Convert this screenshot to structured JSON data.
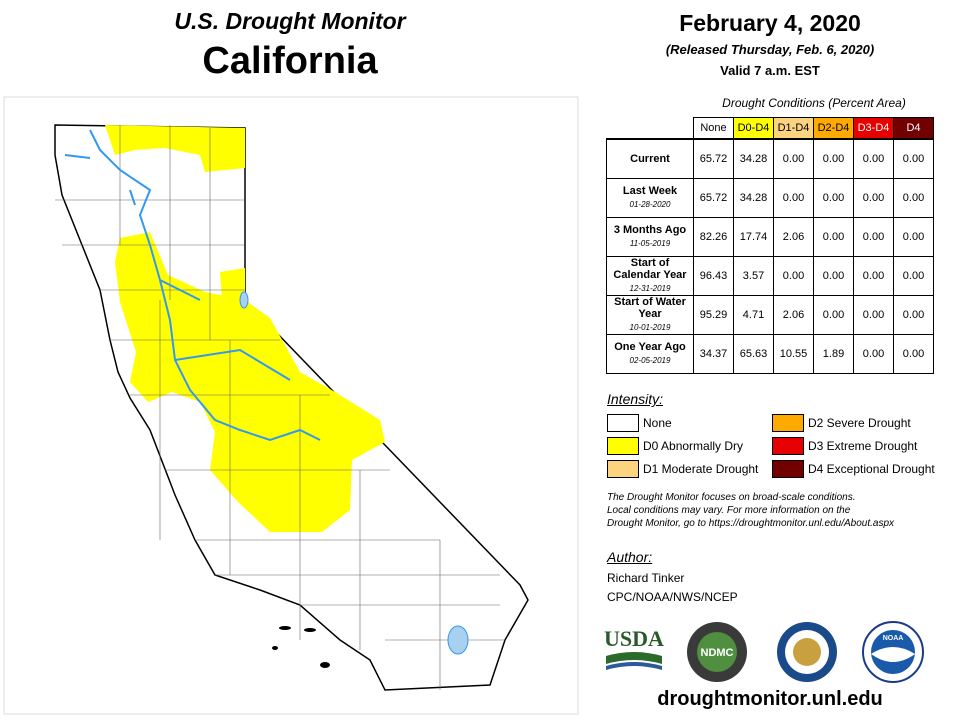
{
  "header": {
    "title": "U.S. Drought Monitor",
    "state": "California",
    "date": "February 4, 2020",
    "released": "(Released Thursday, Feb. 6, 2020)",
    "valid": "Valid 7 a.m. EST"
  },
  "table": {
    "caption": "Drought Conditions (Percent Area)",
    "columns": [
      {
        "label": "None",
        "color": "#ffffff",
        "text": "#000000"
      },
      {
        "label": "D0-D4",
        "color": "#ffff00",
        "text": "#000000"
      },
      {
        "label": "D1-D4",
        "color": "#fcd37f",
        "text": "#000000"
      },
      {
        "label": "D2-D4",
        "color": "#ffaa00",
        "text": "#000000"
      },
      {
        "label": "D3-D4",
        "color": "#e60000",
        "text": "#ffffff"
      },
      {
        "label": "D4",
        "color": "#730000",
        "text": "#ffffff"
      }
    ],
    "rows": [
      {
        "label": "Current",
        "values": [
          "65.72",
          "34.28",
          "0.00",
          "0.00",
          "0.00",
          "0.00"
        ]
      },
      {
        "label": "Last Week",
        "date": "01-28-2020",
        "values": [
          "65.72",
          "34.28",
          "0.00",
          "0.00",
          "0.00",
          "0.00"
        ]
      },
      {
        "label": "3 Months Ago",
        "date": "11-05-2019",
        "values": [
          "82.26",
          "17.74",
          "2.06",
          "0.00",
          "0.00",
          "0.00"
        ]
      },
      {
        "label": "Start of Calendar Year",
        "date": "12-31-2019",
        "values": [
          "96.43",
          "3.57",
          "0.00",
          "0.00",
          "0.00",
          "0.00"
        ]
      },
      {
        "label": "Start of Water Year",
        "date": "10-01-2019",
        "values": [
          "95.29",
          "4.71",
          "2.06",
          "0.00",
          "0.00",
          "0.00"
        ]
      },
      {
        "label": "One Year Ago",
        "date": "02-05-2019",
        "values": [
          "34.37",
          "65.63",
          "10.55",
          "1.89",
          "0.00",
          "0.00"
        ]
      }
    ]
  },
  "legend": {
    "title": "Intensity:",
    "items": [
      {
        "label": "None",
        "color": "#ffffff"
      },
      {
        "label": "D0 Abnormally Dry",
        "color": "#ffff00"
      },
      {
        "label": "D1 Moderate Drought",
        "color": "#fcd37f"
      },
      {
        "label": "D2 Severe Drought",
        "color": "#ffaa00"
      },
      {
        "label": "D3 Extreme Drought",
        "color": "#e60000"
      },
      {
        "label": "D4 Exceptional Drought",
        "color": "#730000"
      }
    ]
  },
  "note": [
    "The Drought Monitor focuses on broad-scale conditions.",
    "Local conditions may vary. For more information on the",
    "Drought Monitor, go to https://droughtmonitor.unl.edu/About.aspx"
  ],
  "author": {
    "title": "Author:",
    "name": "Richard Tinker",
    "org": "CPC/NOAA/NWS/NCEP"
  },
  "logos": [
    "USDA",
    "NDMC",
    "NOAA"
  ],
  "footer": "droughtmonitor.unl.edu"
}
